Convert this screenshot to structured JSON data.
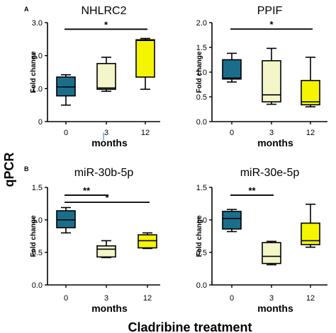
{
  "figure": {
    "ylabel": "qPCR",
    "xlabel": "Cladribine treatment",
    "section_a": "A",
    "section_b": "B"
  },
  "chart_data": [
    {
      "type": "boxplot",
      "title": "NHLRC2",
      "ylabel": "Fold change",
      "xlabel": "months",
      "categories": [
        "0",
        "3",
        "12"
      ],
      "ylim": [
        0,
        3.0
      ],
      "yticks": [
        "0",
        "1.0",
        "2.0",
        "3.0"
      ],
      "boxes": [
        {
          "category": "0",
          "min": 0.5,
          "q1": 0.78,
          "median": 1.05,
          "q3": 1.35,
          "max": 1.42,
          "color": "#1a6e8c"
        },
        {
          "category": "3",
          "min": 0.92,
          "q1": 0.98,
          "median": 1.02,
          "q3": 1.76,
          "max": 1.95,
          "color": "#f4f5c8"
        },
        {
          "category": "12",
          "min": 0.98,
          "q1": 1.35,
          "median": 2.46,
          "q3": 2.48,
          "max": 2.52,
          "color": "#f5f500"
        }
      ],
      "significance": [
        {
          "from": "0",
          "to": "12",
          "label": "*",
          "y": 2.8
        }
      ],
      "annotations": [
        {
          "category": "3",
          "text": "|"
        }
      ]
    },
    {
      "type": "boxplot",
      "title": "PPIF",
      "ylabel": "Fold change",
      "xlabel": "months",
      "categories": [
        "0",
        "3",
        "12"
      ],
      "ylim": [
        0,
        2.0
      ],
      "yticks": [
        "0.0",
        "0.5",
        "1.0",
        "1.5",
        "2.0"
      ],
      "boxes": [
        {
          "category": "0",
          "min": 0.8,
          "q1": 0.86,
          "median": 0.88,
          "q3": 1.25,
          "max": 1.38,
          "color": "#1a6e8c"
        },
        {
          "category": "3",
          "min": 0.35,
          "q1": 0.4,
          "median": 0.54,
          "q3": 1.23,
          "max": 1.48,
          "color": "#f4f5c8"
        },
        {
          "category": "12",
          "min": 0.3,
          "q1": 0.34,
          "median": 0.4,
          "q3": 0.83,
          "max": 1.3,
          "color": "#f5f500"
        }
      ],
      "significance": [
        {
          "from": "0",
          "to": "12",
          "label": "*",
          "y": 1.87
        }
      ]
    },
    {
      "type": "boxplot",
      "title": "miR-30b-5p",
      "ylabel": "Fold change",
      "xlabel": "months",
      "categories": [
        "0",
        "3",
        "12"
      ],
      "ylim": [
        0,
        1.5
      ],
      "yticks": [
        "0.0",
        "0.5",
        "1.0",
        "1.5"
      ],
      "boxes": [
        {
          "category": "0",
          "min": 0.8,
          "q1": 0.88,
          "median": 1.0,
          "q3": 1.14,
          "max": 1.19,
          "color": "#1a6e8c"
        },
        {
          "category": "3",
          "min": 0.42,
          "q1": 0.43,
          "median": 0.55,
          "q3": 0.6,
          "max": 0.68,
          "color": "#f4f5c8"
        },
        {
          "category": "12",
          "min": 0.56,
          "q1": 0.57,
          "median": 0.68,
          "q3": 0.77,
          "max": 0.8,
          "color": "#f5f500"
        }
      ],
      "significance": [
        {
          "from": "0",
          "to": "3",
          "label": "**",
          "y": 1.38
        },
        {
          "from": "0",
          "to": "12",
          "label": "*",
          "y": 1.27
        }
      ]
    },
    {
      "type": "boxplot",
      "title": "miR-30e-5p",
      "ylabel": "Fold change",
      "xlabel": "months",
      "categories": [
        "0",
        "3",
        "12"
      ],
      "ylim": [
        0,
        1.5
      ],
      "yticks": [
        "0.0",
        "0.5",
        "1.0",
        "1.5"
      ],
      "boxes": [
        {
          "category": "0",
          "min": 0.82,
          "q1": 0.86,
          "median": 1.02,
          "q3": 1.13,
          "max": 1.16,
          "color": "#1a6e8c"
        },
        {
          "category": "3",
          "min": 0.31,
          "q1": 0.33,
          "median": 0.44,
          "q3": 0.65,
          "max": 0.67,
          "color": "#f4f5c8"
        },
        {
          "category": "12",
          "min": 0.58,
          "q1": 0.62,
          "median": 0.68,
          "q3": 0.95,
          "max": 1.24,
          "color": "#f5f500"
        }
      ],
      "significance": [
        {
          "from": "0",
          "to": "3",
          "label": "**",
          "y": 1.38
        }
      ]
    }
  ]
}
